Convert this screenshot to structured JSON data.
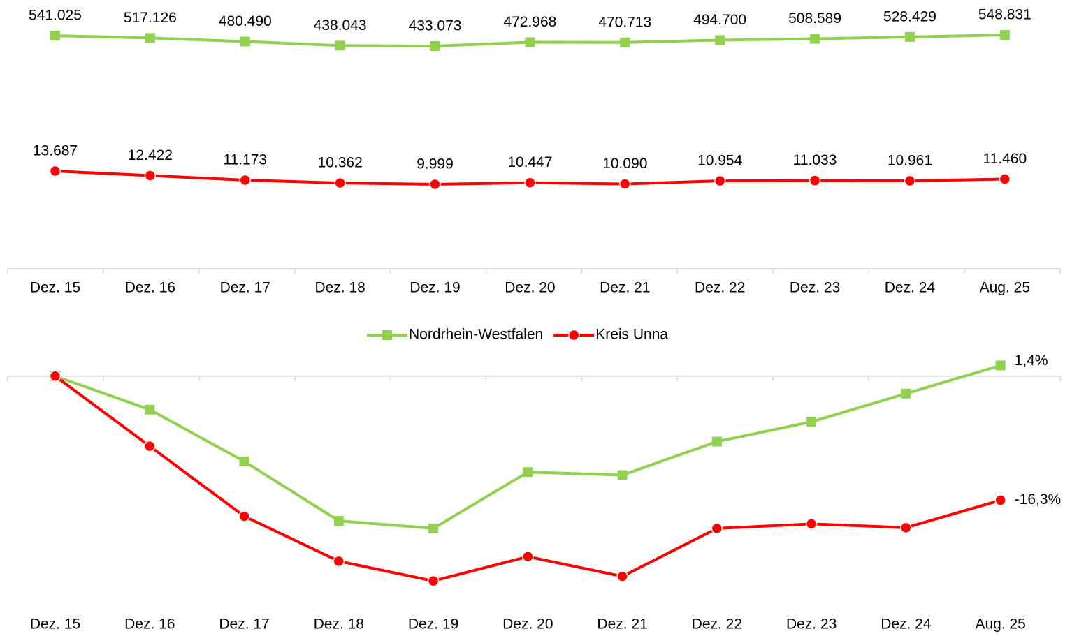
{
  "chart_data": [
    {
      "type": "line",
      "categories": [
        "Dez. 15",
        "Dez. 16",
        "Dez. 17",
        "Dez. 18",
        "Dez. 19",
        "Dez. 20",
        "Dez. 21",
        "Dez. 22",
        "Dez. 23",
        "Dez. 24",
        "Aug. 25"
      ],
      "series": [
        {
          "name": "Nordrhein-Westfalen",
          "color": "#92d050",
          "marker": "square",
          "values": [
            541025,
            517126,
            480490,
            438043,
            433073,
            472968,
            470713,
            494700,
            508589,
            528429,
            548831
          ],
          "value_labels": [
            "541.025",
            "517.126",
            "480.490",
            "438.043",
            "433.073",
            "472.968",
            "470.713",
            "494.700",
            "508.589",
            "528.429",
            "548.831"
          ]
        },
        {
          "name": "Kreis Unna",
          "color": "#ff0000",
          "marker": "circle",
          "values": [
            13687,
            12422,
            11173,
            10362,
            9999,
            10447,
            10090,
            10954,
            11033,
            10961,
            11460
          ],
          "value_labels": [
            "13.687",
            "12.422",
            "11.173",
            "10.362",
            "9.999",
            "10.447",
            "10.090",
            "10.954",
            "11.033",
            "10.961",
            "11.460"
          ]
        }
      ]
    },
    {
      "type": "line",
      "categories": [
        "Dez. 15",
        "Dez. 16",
        "Dez. 17",
        "Dez. 18",
        "Dez. 19",
        "Dez. 20",
        "Dez. 21",
        "Dez. 22",
        "Dez. 23",
        "Dez. 24",
        "Aug. 25"
      ],
      "ylim": [
        -30,
        3
      ],
      "series": [
        {
          "color": "#92d050",
          "marker": "square",
          "values": [
            0,
            -4.4,
            -11.2,
            -19.0,
            -20.0,
            -12.6,
            -13.0,
            -8.6,
            -6.0,
            -2.3,
            1.4
          ],
          "value_labels": [
            null,
            null,
            null,
            null,
            null,
            null,
            null,
            null,
            null,
            null,
            "1,4%"
          ]
        },
        {
          "color": "#ff0000",
          "marker": "circle",
          "values": [
            0,
            -9.2,
            -18.4,
            -24.3,
            -26.9,
            -23.7,
            -26.3,
            -20.0,
            -19.4,
            -19.9,
            -16.3
          ],
          "value_labels": [
            null,
            null,
            null,
            null,
            null,
            null,
            null,
            null,
            null,
            null,
            "-16,3%"
          ]
        }
      ]
    }
  ]
}
